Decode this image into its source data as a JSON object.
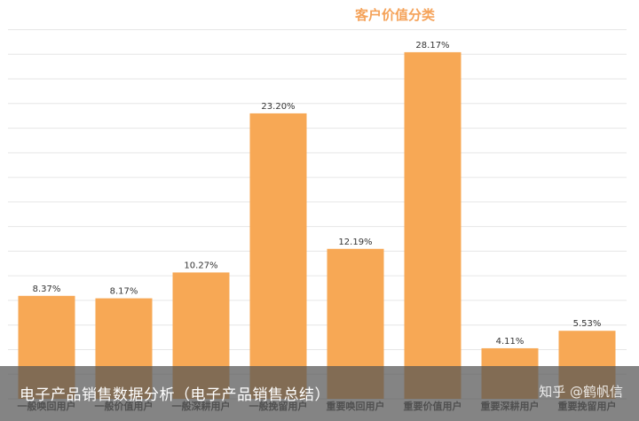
{
  "chart_data": {
    "type": "bar",
    "title": "客户价值分类",
    "categories": [
      "一般唤回用户",
      "一般价值用户",
      "一般深耕用户",
      "一般挽留用户",
      "重要唤回用户",
      "重要价值用户",
      "重要深耕用户",
      "重要挽留用户"
    ],
    "values": [
      8.37,
      8.17,
      10.27,
      23.2,
      12.19,
      28.17,
      4.11,
      5.53
    ],
    "value_labels": [
      "8.37%",
      "8.17%",
      "10.27%",
      "23.20%",
      "12.19%",
      "28.17%",
      "4.11%",
      "5.53%"
    ],
    "ylim": [
      0,
      30
    ],
    "grid": true,
    "legend": "none"
  },
  "colors": {
    "bar": "#f7a855",
    "title": "#f5a35a",
    "grid": "#e6e6e6"
  },
  "caption": {
    "text": "电子产品销售数据分析（电子产品销售总结）",
    "watermark": "知乎 @鹤帆信"
  }
}
